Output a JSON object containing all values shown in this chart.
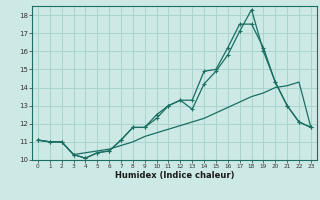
{
  "xlabel": "Humidex (Indice chaleur)",
  "ylabel": "",
  "xlim": [
    -0.5,
    23.5
  ],
  "ylim": [
    10,
    18.5
  ],
  "xticks": [
    0,
    1,
    2,
    3,
    4,
    5,
    6,
    7,
    8,
    9,
    10,
    11,
    12,
    13,
    14,
    15,
    16,
    17,
    18,
    19,
    20,
    21,
    22,
    23
  ],
  "yticks": [
    10,
    11,
    12,
    13,
    14,
    15,
    16,
    17,
    18
  ],
  "background_color": "#cce9e5",
  "grid_color": "#aad4ce",
  "line_color": "#1a6e62",
  "line1_x": [
    0,
    1,
    2,
    3,
    4,
    5,
    6,
    7,
    8,
    9,
    10,
    11,
    12,
    13,
    14,
    15,
    16,
    17,
    18,
    19,
    20,
    21,
    22,
    23
  ],
  "line1_y": [
    11.1,
    11.0,
    11.0,
    10.3,
    10.1,
    10.4,
    10.5,
    11.1,
    11.8,
    11.8,
    12.3,
    13.0,
    13.3,
    12.8,
    14.2,
    14.9,
    15.8,
    17.1,
    18.3,
    16.0,
    14.3,
    13.0,
    12.1,
    11.8
  ],
  "line2_x": [
    0,
    1,
    2,
    3,
    4,
    5,
    6,
    7,
    8,
    9,
    10,
    11,
    12,
    13,
    14,
    15,
    16,
    17,
    18,
    19,
    20,
    21,
    22,
    23
  ],
  "line2_y": [
    11.1,
    11.0,
    11.0,
    10.3,
    10.1,
    10.4,
    10.5,
    11.1,
    11.8,
    11.8,
    12.5,
    13.0,
    13.3,
    13.3,
    14.9,
    15.0,
    16.2,
    17.5,
    17.5,
    16.2,
    14.3,
    13.0,
    12.1,
    11.8
  ],
  "line3_x": [
    0,
    1,
    2,
    3,
    4,
    5,
    6,
    7,
    8,
    9,
    10,
    11,
    12,
    13,
    14,
    15,
    16,
    17,
    18,
    19,
    20,
    21,
    22,
    23
  ],
  "line3_y": [
    11.1,
    11.0,
    11.0,
    10.3,
    10.4,
    10.5,
    10.6,
    10.8,
    11.0,
    11.3,
    11.5,
    11.7,
    11.9,
    12.1,
    12.3,
    12.6,
    12.9,
    13.2,
    13.5,
    13.7,
    14.0,
    14.1,
    14.3,
    11.8
  ]
}
